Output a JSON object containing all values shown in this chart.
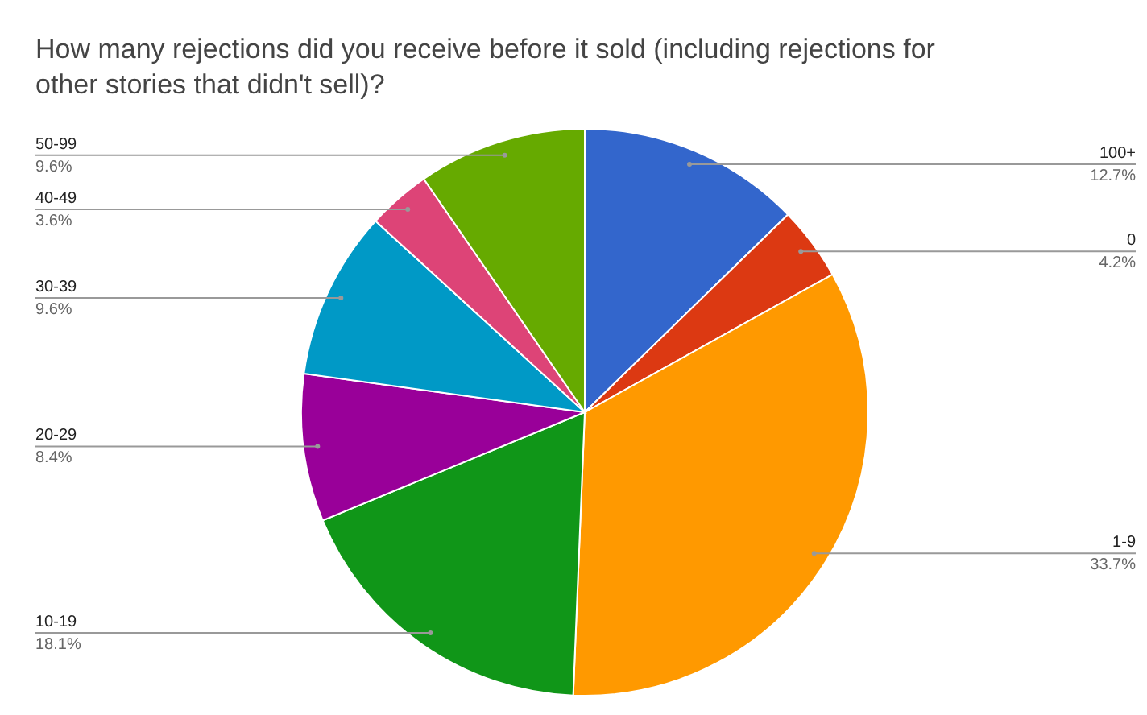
{
  "chart_data": {
    "type": "pie",
    "title": "How many rejections did you receive before it sold (including rejections for other stories that didn't sell)?",
    "categories": [
      "100+",
      "0",
      "1-9",
      "10-19",
      "20-29",
      "30-39",
      "40-49",
      "50-99"
    ],
    "values": [
      12.7,
      4.2,
      33.7,
      18.1,
      8.4,
      9.6,
      3.6,
      9.6
    ],
    "value_labels": [
      "12.7%",
      "4.2%",
      "33.7%",
      "18.1%",
      "8.4%",
      "9.6%",
      "3.6%",
      "9.6%"
    ],
    "colors": [
      "#3366cc",
      "#dc3912",
      "#ff9900",
      "#109618",
      "#990099",
      "#0099c6",
      "#dd4477",
      "#66aa00"
    ]
  }
}
